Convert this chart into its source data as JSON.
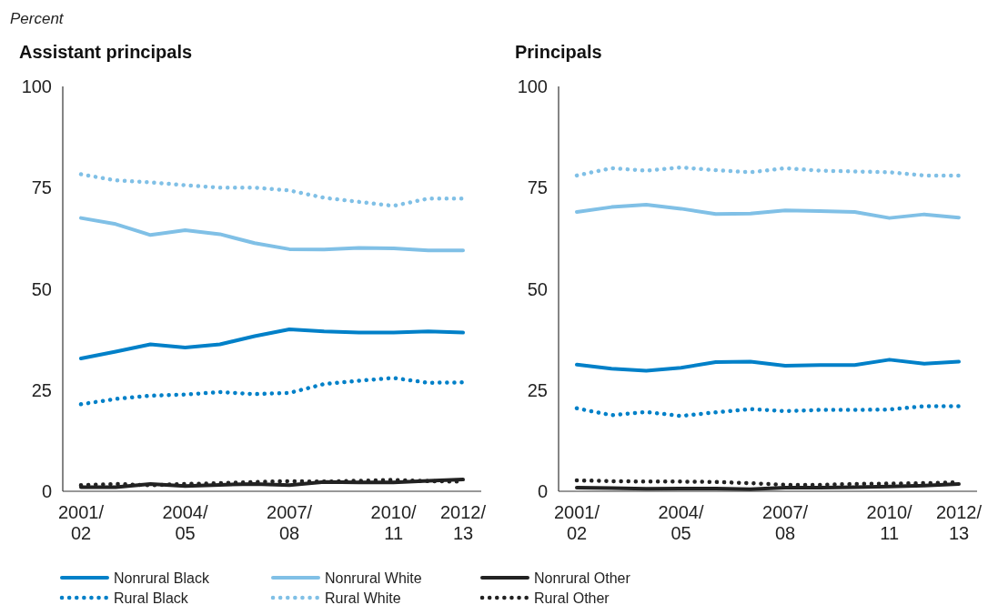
{
  "chart_data": [
    {
      "type": "line",
      "title": "Assistant principals",
      "ylabel": "Percent",
      "categories": [
        "2001/02",
        null,
        null,
        "2004/05",
        null,
        null,
        "2007/08",
        null,
        null,
        "2010/11",
        null,
        "2012/13"
      ],
      "ylim": [
        0,
        100
      ],
      "yticks": [
        0,
        25,
        50,
        75,
        100
      ],
      "grid": false,
      "legend": "bottom",
      "series": [
        {
          "name": "Nonrural Black",
          "color": "#0080c8",
          "line_style": "solid",
          "values": [
            32.8,
            34.5,
            36.3,
            35.5,
            36.3,
            38.3,
            40,
            39.5,
            39.2,
            39.2,
            39.5,
            39.2
          ]
        },
        {
          "name": "Nonrural White",
          "color": "#80c0e6",
          "line_style": "solid",
          "values": [
            67.5,
            66,
            63.3,
            64.5,
            63.5,
            61.3,
            59.8,
            59.7,
            60.1,
            60,
            59.5,
            59.5
          ]
        },
        {
          "name": "Nonrural Other",
          "color": "#222222",
          "line_style": "solid",
          "values": [
            1,
            1,
            1.8,
            1.3,
            1.6,
            1.8,
            1.5,
            2.3,
            2.2,
            2.2,
            2.6,
            2.9
          ]
        },
        {
          "name": "Rural Black",
          "color": "#0080c8",
          "line_style": "dotted",
          "values": [
            21.5,
            22.8,
            23.6,
            23.9,
            24.5,
            24,
            24.3,
            26.5,
            27.3,
            28,
            26.8,
            26.9
          ]
        },
        {
          "name": "Rural White",
          "color": "#80c0e6",
          "line_style": "dotted",
          "values": [
            78.3,
            76.8,
            76.3,
            75.6,
            75,
            75,
            74.3,
            72.5,
            71.5,
            70.5,
            72.3,
            72.3
          ]
        },
        {
          "name": "Rural Other",
          "color": "#222222",
          "line_style": "dotted",
          "values": [
            1.5,
            1.8,
            1.5,
            1.8,
            2,
            2.3,
            2.5,
            2.4,
            2.6,
            2.8,
            2.5,
            2.4
          ]
        }
      ]
    },
    {
      "type": "line",
      "title": "Principals",
      "categories": [
        "2001/02",
        null,
        null,
        "2004/05",
        null,
        null,
        "2007/08",
        null,
        null,
        "2010/11",
        null,
        "2012/13"
      ],
      "ylim": [
        0,
        100
      ],
      "yticks": [
        0,
        25,
        50,
        75,
        100
      ],
      "grid": false,
      "series": [
        {
          "color": "#0080c8",
          "line_style": "solid",
          "values": [
            31.3,
            30.3,
            29.8,
            30.5,
            31.9,
            32,
            31,
            31.2,
            31.2,
            32.5,
            31.5,
            32
          ]
        },
        {
          "color": "#80c0e6",
          "line_style": "solid",
          "values": [
            69,
            70.2,
            70.8,
            69.8,
            68.5,
            68.6,
            69.4,
            69.2,
            69,
            67.5,
            68.4,
            67.6
          ]
        },
        {
          "color": "#222222",
          "line_style": "solid",
          "values": [
            0.9,
            0.8,
            0.6,
            0.7,
            0.7,
            0.5,
            0.9,
            0.9,
            1,
            1.2,
            1.4,
            1.8
          ]
        },
        {
          "color": "#0080c8",
          "line_style": "dotted",
          "values": [
            20.5,
            18.8,
            19.6,
            18.6,
            19.5,
            20.3,
            19.8,
            20.1,
            20.1,
            20.2,
            21,
            21
          ]
        },
        {
          "color": "#80c0e6",
          "line_style": "dotted",
          "values": [
            78,
            79.8,
            79.2,
            80,
            79.3,
            78.8,
            79.8,
            79.2,
            79,
            78.8,
            78,
            78
          ]
        },
        {
          "color": "#222222",
          "line_style": "dotted",
          "values": [
            2.7,
            2.5,
            2.4,
            2.4,
            2.3,
            2,
            1.6,
            1.6,
            1.8,
            1.9,
            2,
            2.2
          ]
        }
      ]
    }
  ]
}
